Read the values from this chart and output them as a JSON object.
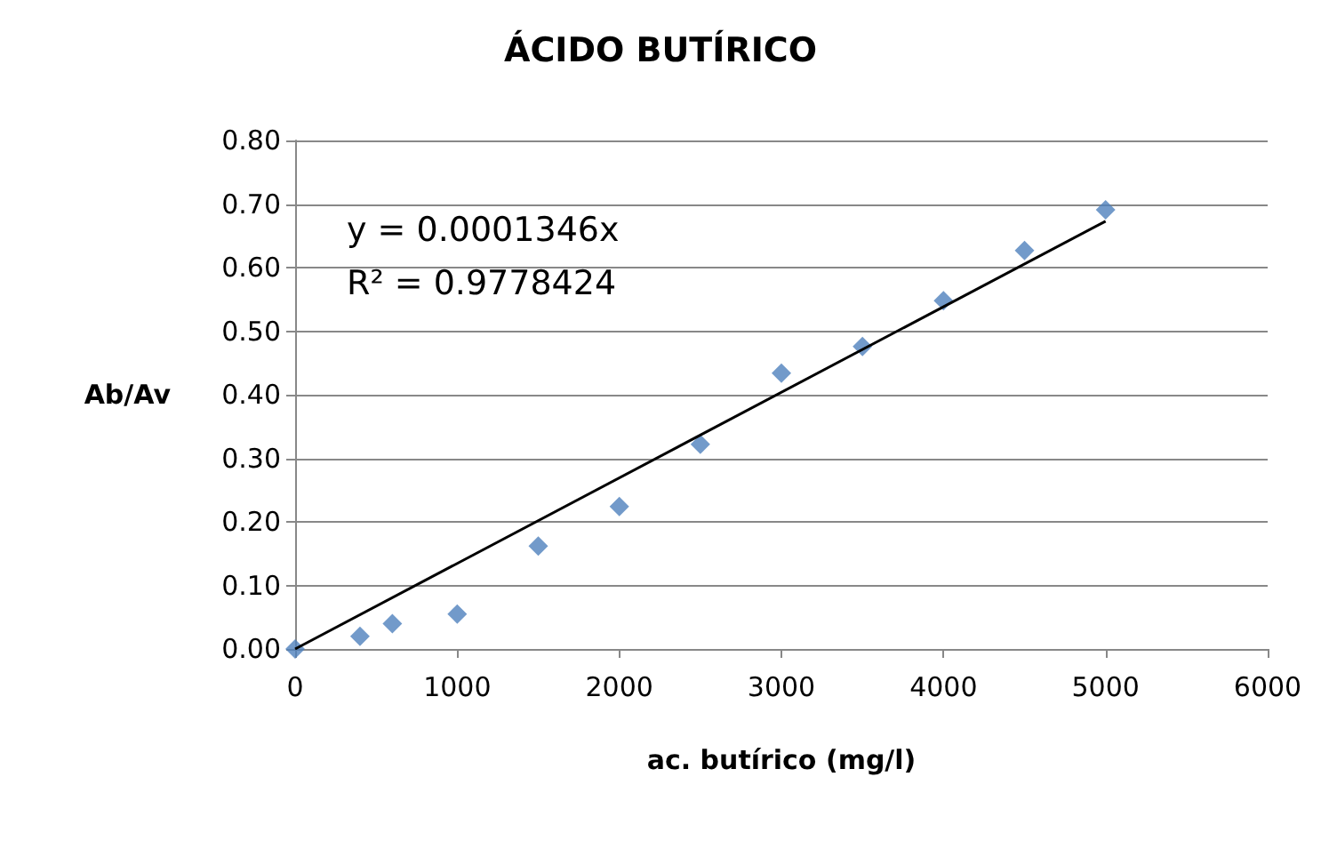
{
  "chart_data": {
    "type": "scatter",
    "title": "ÁCIDO BUTÍRICO",
    "xlabel": "ac. butírico (mg/l)",
    "ylabel": "Ab/Av",
    "annotations": [
      "y = 0.0001346x",
      "R² = 0.9778424"
    ],
    "xlim": [
      0,
      6000
    ],
    "xticks": [
      0,
      1000,
      2000,
      3000,
      4000,
      5000,
      6000
    ],
    "ylim": [
      0,
      0.8
    ],
    "yticks": [
      {
        "value": 0,
        "label": "0.00"
      },
      {
        "value": 0.1,
        "label": "0.10"
      },
      {
        "value": 0.2,
        "label": "0.20"
      },
      {
        "value": 0.3,
        "label": "0.30"
      },
      {
        "value": 0.4,
        "label": "0.40"
      },
      {
        "value": 0.5,
        "label": "0.50"
      },
      {
        "value": 0.6,
        "label": "0.60"
      },
      {
        "value": 0.7,
        "label": "0.70"
      },
      {
        "value": 0.8,
        "label": "0.80"
      }
    ],
    "grid": "y",
    "marker": "diamond",
    "series": [
      {
        "type": "scatter",
        "color": "#4f81bd",
        "x": [
          0,
          400,
          600,
          1000,
          1500,
          2000,
          2500,
          3000,
          3500,
          4000,
          4500,
          5000
        ],
        "values": [
          0,
          0.02,
          0.04,
          0.055,
          0.162,
          0.224,
          0.322,
          0.434,
          0.476,
          0.548,
          0.627,
          0.691
        ]
      },
      {
        "type": "line",
        "color": "#000000",
        "marker": "none",
        "line_style": "solid",
        "x": [
          0,
          5000
        ],
        "values": [
          0,
          0.673
        ]
      }
    ]
  }
}
